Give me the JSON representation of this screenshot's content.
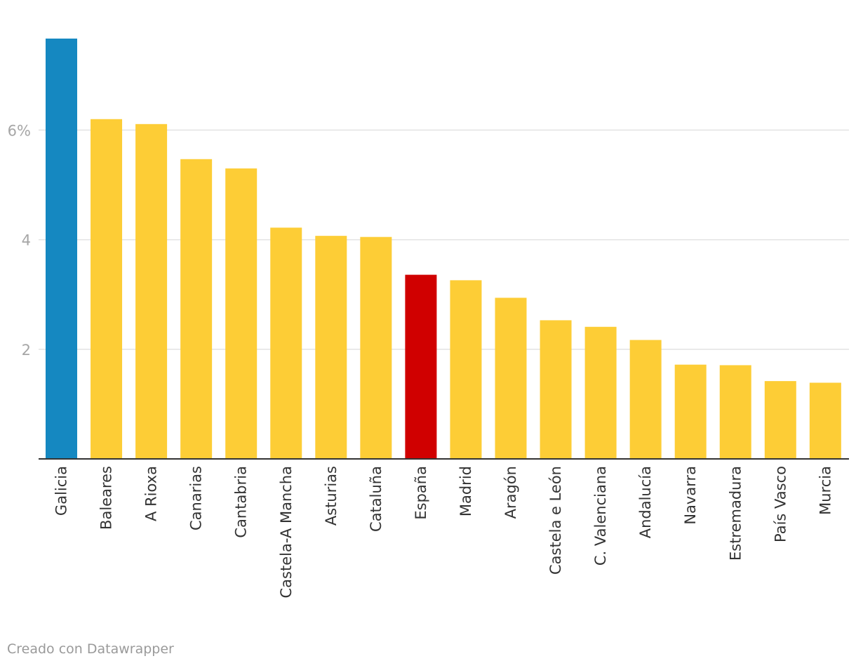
{
  "chart_data": {
    "type": "bar",
    "title": "",
    "xlabel": "",
    "ylabel": "",
    "unit": "%",
    "ylim": [
      0,
      7.7
    ],
    "yticks": [
      {
        "value": 2,
        "label": "2"
      },
      {
        "value": 4,
        "label": "4"
      },
      {
        "value": 6,
        "label": "6%"
      }
    ],
    "grid": true,
    "categories": [
      "Galicia",
      "Baleares",
      "A Rioxa",
      "Canarias",
      "Cantabria",
      "Castela-A Mancha",
      "Asturias",
      "Cataluña",
      "España",
      "Madrid",
      "Aragón",
      "Castela e León",
      "C. Valenciana",
      "Andalucía",
      "Navarra",
      "Estremadura",
      "País Vasco",
      "Murcia"
    ],
    "values": [
      7.67,
      6.2,
      6.11,
      5.47,
      5.3,
      4.22,
      4.07,
      4.05,
      3.36,
      3.26,
      2.94,
      2.53,
      2.41,
      2.17,
      1.72,
      1.71,
      1.42,
      1.39
    ],
    "colors": {
      "highlight": "#1588c1",
      "default": "#fdcd36",
      "total": "#d00000",
      "grid": "#e3e3e3",
      "axis": "#333333"
    },
    "bar_color_keys": [
      "highlight",
      "default",
      "default",
      "default",
      "default",
      "default",
      "default",
      "default",
      "total",
      "default",
      "default",
      "default",
      "default",
      "default",
      "default",
      "default",
      "default",
      "default"
    ]
  },
  "footer": {
    "credit": "Creado con Datawrapper"
  }
}
